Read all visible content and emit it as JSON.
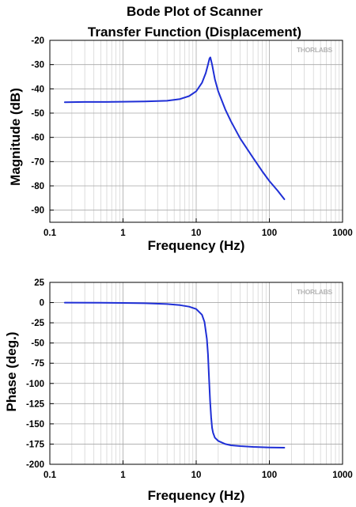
{
  "chart_data": [
    {
      "type": "line",
      "title_lines": [
        "Bode Plot of Scanner",
        "Transfer Function (Displacement)"
      ],
      "xlabel": "Frequency (Hz)",
      "ylabel": "Magnitude (dB)",
      "xscale": "log",
      "xlim": [
        0.1,
        1000
      ],
      "ylim": [
        -95,
        -20
      ],
      "xticks": [
        0.1,
        1,
        10,
        100,
        1000
      ],
      "xtick_labels": [
        "0.1",
        "1",
        "10",
        "100",
        "1000"
      ],
      "yticks": [
        -20,
        -30,
        -40,
        -50,
        -60,
        -70,
        -80,
        -90
      ],
      "ytick_labels": [
        "-20",
        "-30",
        "-40",
        "-50",
        "-60",
        "-70",
        "-80",
        "-90"
      ],
      "grid": true,
      "watermark": "THORLABS",
      "color": "#1f2fd6",
      "series": [
        {
          "x": [
            0.16,
            0.3,
            0.6,
            1,
            2,
            4,
            6,
            8,
            10,
            12,
            13.5,
            14.5,
            15.2,
            15.6,
            16.5,
            18,
            20,
            25,
            30,
            40,
            60,
            80,
            100,
            130,
            160
          ],
          "values": [
            -45.5,
            -45.4,
            -45.4,
            -45.3,
            -45.2,
            -44.9,
            -44.2,
            -43.0,
            -41.0,
            -37.5,
            -33.5,
            -30.0,
            -27.5,
            -27.0,
            -30.0,
            -36.0,
            -41.0,
            -48.5,
            -53.5,
            -60.5,
            -68.5,
            -74.0,
            -78.0,
            -82.0,
            -85.5
          ]
        }
      ]
    },
    {
      "type": "line",
      "xlabel": "Frequency (Hz)",
      "ylabel": "Phase (deg.)",
      "xscale": "log",
      "xlim": [
        0.1,
        1000
      ],
      "ylim": [
        -200,
        25
      ],
      "xticks": [
        0.1,
        1,
        10,
        100,
        1000
      ],
      "xtick_labels": [
        "0.1",
        "1",
        "10",
        "100",
        "1000"
      ],
      "yticks": [
        25,
        0,
        -25,
        -50,
        -75,
        -100,
        -125,
        -150,
        -175,
        -200
      ],
      "ytick_labels": [
        "25",
        "0",
        "-25",
        "-50",
        "-75",
        "-100",
        "-125",
        "-150",
        "-175",
        "-200"
      ],
      "grid": true,
      "watermark": "THORLABS",
      "color": "#1f2fd6",
      "series": [
        {
          "x": [
            0.16,
            0.5,
            1,
            2,
            4,
            6,
            8,
            10,
            12,
            13,
            14,
            14.5,
            15,
            15.5,
            16,
            16.5,
            17,
            18,
            20,
            25,
            30,
            40,
            60,
            100,
            160
          ],
          "values": [
            0,
            -0.2,
            -0.4,
            -0.8,
            -1.8,
            -3.2,
            -5,
            -8,
            -15,
            -24,
            -45,
            -64,
            -95,
            -122,
            -142,
            -155,
            -161,
            -167,
            -171,
            -175,
            -176.5,
            -177.5,
            -178.5,
            -179.2,
            -179.5
          ]
        }
      ]
    }
  ]
}
